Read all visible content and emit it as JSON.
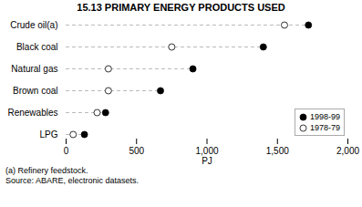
{
  "chart_data": {
    "type": "dot",
    "title": "15.13   PRIMARY ENERGY PRODUCTS USED",
    "orientation": "horizontal",
    "categories": [
      "Crude oil(a)",
      "Black coal",
      "Natural gas",
      "Brown coal",
      "Renewables",
      "LPG"
    ],
    "series": [
      {
        "name": "1998-99",
        "color": "#000000",
        "marker": "circle",
        "values": [
          1720,
          1400,
          900,
          670,
          280,
          130
        ]
      },
      {
        "name": "1978-79",
        "color": "#ffffff",
        "marker": "circle",
        "values": [
          1550,
          750,
          300,
          300,
          220,
          50
        ]
      }
    ],
    "xlabel": "PJ",
    "xlim": [
      0,
      2000
    ],
    "xticks": [
      0,
      500,
      1000,
      1500,
      2000
    ],
    "color": "#aaaaaa",
    "line_style": "dashed",
    "grid": false,
    "legend": "lower right",
    "annotations": [
      "(a) Refinery feedstock.",
      "Source: ABARE, electronic datasets."
    ]
  }
}
